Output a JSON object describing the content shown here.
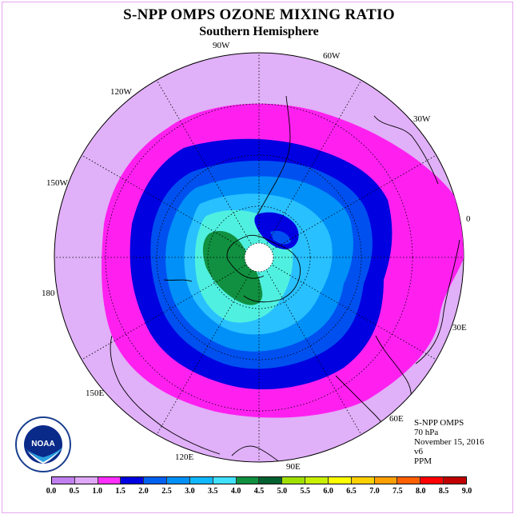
{
  "title": "S-NPP OMPS OZONE MIXING RATIO",
  "subtitle": "Southern Hemisphere",
  "longitude_labels": {
    "lon_90w": "90W",
    "lon_60w": "60W",
    "lon_30w": "30W",
    "lon_0": "0",
    "lon_30e": "30E",
    "lon_60e": "60E",
    "lon_90e": "90E",
    "lon_120e": "120E",
    "lon_150e": "150E",
    "lon_180": "180",
    "lon_150w": "150W",
    "lon_120w": "120W"
  },
  "info": {
    "instrument": "S-NPP OMPS",
    "level": "70 hPa",
    "date": "November 15, 2016",
    "version": "v6",
    "units": "PPM"
  },
  "logo_text": "NOAA",
  "colorbar": {
    "colors": [
      "#c080f0",
      "#e0a8f8",
      "#ff30ff",
      "#ff00e8",
      "#0000e0",
      "#0060f0",
      "#0090f8",
      "#10b8ff",
      "#40e0ff",
      "#40ffd0",
      "#109040",
      "#006030",
      "#a0e000",
      "#c8f000",
      "#ffff00",
      "#ffd000",
      "#ffa000",
      "#ff6000",
      "#ff0000",
      "#c00000",
      "#905040"
    ],
    "tick_labels": [
      "0.0",
      "0.5",
      "1.0",
      "1.5",
      "2.0",
      "2.5",
      "3.0",
      "3.5",
      "4.0",
      "4.5",
      "5.0",
      "5.5",
      "6.0",
      "6.5",
      "7.0",
      "7.5",
      "8.0",
      "8.5",
      "9.0"
    ]
  },
  "legend_colors": {
    "lt1": "#e0b0f8",
    "c1_15": "#ff20f0",
    "c15_2": "#0000e0",
    "c2_25": "#0050f0",
    "c25_3": "#0090f8",
    "c3_35": "#28c0ff",
    "c35_4": "#50f0e0",
    "c4_45": "#109040",
    "pole_hole": "#ffffff"
  }
}
